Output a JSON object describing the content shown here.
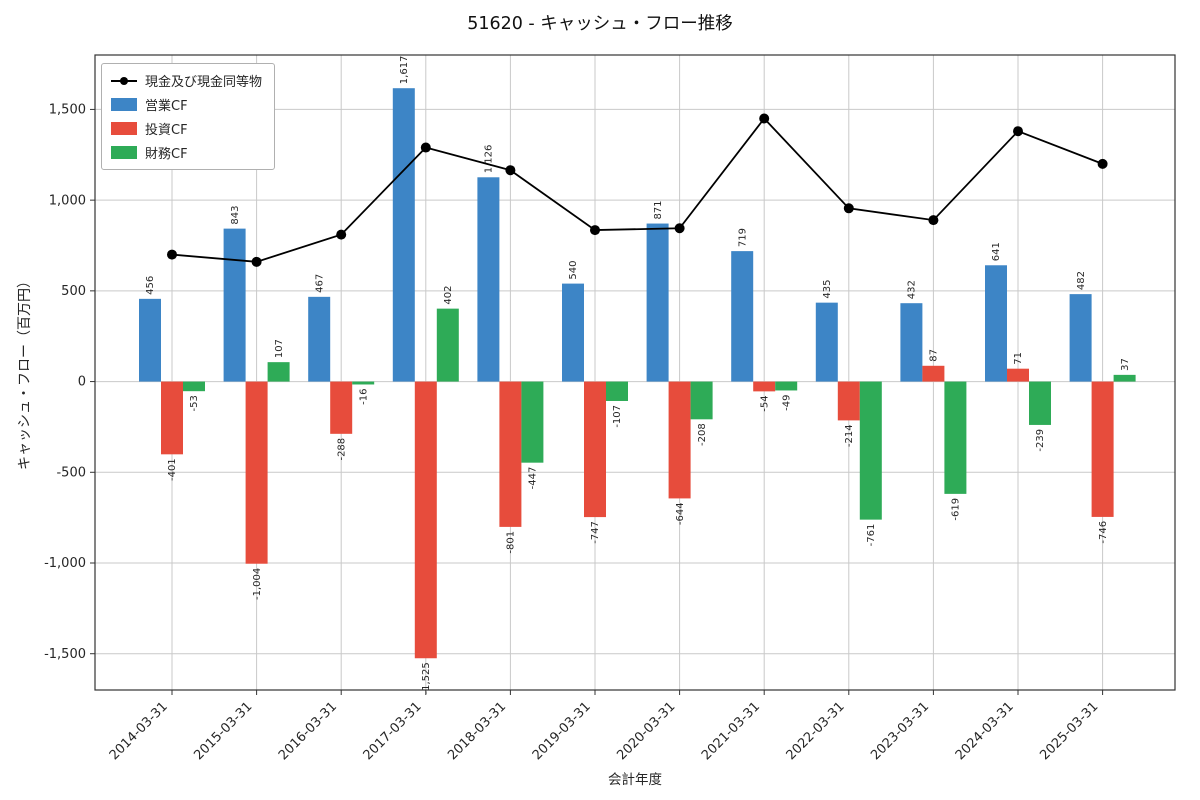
{
  "title": "51620 - キャッシュ・フロー推移",
  "chart_data": {
    "type": "bar",
    "title": "51620 - キャッシュ・フロー推移",
    "xlabel": "会計年度",
    "ylabel": "キャッシュ・フロー（百万円）",
    "categories": [
      "2014-03-31",
      "2015-03-31",
      "2016-03-31",
      "2017-03-31",
      "2018-03-31",
      "2019-03-31",
      "2020-03-31",
      "2021-03-31",
      "2022-03-31",
      "2023-03-31",
      "2024-03-31",
      "2025-03-31"
    ],
    "series": [
      {
        "name": "現金及び現金同等物",
        "kind": "line",
        "color": "#000000",
        "values": [
          700,
          660,
          810,
          1290,
          1165,
          835,
          845,
          1450,
          955,
          890,
          1380,
          1200
        ]
      },
      {
        "name": "営業CF",
        "kind": "bar",
        "color": "#3d85c6",
        "values": [
          456,
          843,
          467,
          1617,
          1126,
          540,
          871,
          719,
          435,
          432,
          641,
          482
        ]
      },
      {
        "name": "投資CF",
        "kind": "bar",
        "color": "#e74c3c",
        "values": [
          -401,
          -1004,
          -288,
          -1525,
          -801,
          -747,
          -644,
          -54,
          -214,
          87,
          71,
          -746
        ]
      },
      {
        "name": "財務CF",
        "kind": "bar",
        "color": "#2eab57",
        "values": [
          -53,
          107,
          -16,
          402,
          -447,
          -107,
          -208,
          -49,
          -761,
          -619,
          -239,
          37
        ]
      }
    ],
    "ylim": [
      -1700,
      1800
    ],
    "yticks": [
      -1500,
      -1000,
      -500,
      0,
      500,
      1000,
      1500
    ],
    "grid": true,
    "legend_position": "upper-left"
  }
}
